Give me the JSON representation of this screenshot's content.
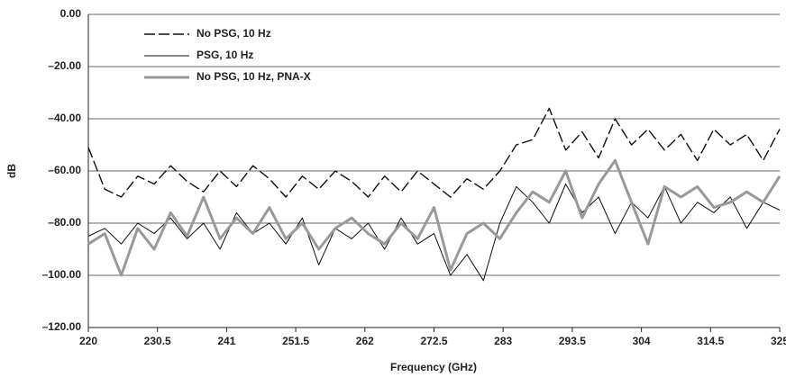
{
  "chart_data": {
    "type": "line",
    "xlabel": "Frequency (GHz)",
    "ylabel": "dB",
    "x": [
      220,
      222.5,
      225,
      227.5,
      230,
      232.5,
      235,
      237.5,
      240,
      242.5,
      245,
      247.5,
      250,
      252.5,
      255,
      257.5,
      260,
      262.5,
      265,
      267.5,
      270,
      272.5,
      275,
      277.5,
      280,
      282.5,
      285,
      287.5,
      290,
      292.5,
      295,
      297.5,
      300,
      302.5,
      305,
      307.5,
      310,
      312.5,
      315,
      317.5,
      320,
      322.5,
      325
    ],
    "series": [
      {
        "name": "No PSG, 10 Hz",
        "color": "#111111",
        "line_style": "dashed",
        "values": [
          -51,
          -67,
          -70,
          -62,
          -65,
          -58,
          -64,
          -68,
          -60,
          -66,
          -58,
          -63,
          -70,
          -62,
          -67,
          -60,
          -64,
          -70,
          -62,
          -68,
          -60,
          -65,
          -70,
          -63,
          -67,
          -60,
          -50,
          -48,
          -36,
          -52,
          -45,
          -55,
          -40,
          -50,
          -44,
          -52,
          -46,
          -56,
          -44,
          -50,
          -46,
          -56,
          -44
        ]
      },
      {
        "name": "PSG, 10 Hz",
        "color": "#111111",
        "line_style": "solid",
        "values": [
          -85,
          -82,
          -88,
          -80,
          -84,
          -78,
          -86,
          -80,
          -90,
          -76,
          -84,
          -80,
          -88,
          -78,
          -96,
          -82,
          -86,
          -80,
          -90,
          -78,
          -88,
          -84,
          -100,
          -92,
          -102,
          -80,
          -66,
          -72,
          -80,
          -65,
          -76,
          -70,
          -84,
          -72,
          -78,
          -66,
          -80,
          -72,
          -76,
          -70,
          -82,
          -72,
          -75
        ]
      },
      {
        "name": "No PSG, 10 Hz, PNA-X",
        "color": "#999999",
        "line_style": "solid",
        "values": [
          -88,
          -84,
          -100,
          -82,
          -90,
          -76,
          -85,
          -70,
          -86,
          -78,
          -84,
          -74,
          -86,
          -80,
          -90,
          -82,
          -78,
          -84,
          -88,
          -80,
          -86,
          -74,
          -98,
          -84,
          -80,
          -86,
          -76,
          -68,
          -72,
          -60,
          -78,
          -65,
          -56,
          -72,
          -88,
          -66,
          -70,
          -66,
          -74,
          -72,
          -68,
          -72,
          -62
        ]
      }
    ],
    "xlim": [
      220,
      325
    ],
    "xticks": [
      220,
      230.5,
      241,
      251.5,
      262,
      272.5,
      283,
      293.5,
      304,
      314.5,
      325
    ],
    "ylim": [
      -120,
      0
    ],
    "yticks": [
      {
        "value": 0,
        "label": "0.00"
      },
      {
        "value": -20,
        "label": "–20.00"
      },
      {
        "value": -40,
        "label": "–40.00"
      },
      {
        "value": -60,
        "label": "–60.00"
      },
      {
        "value": -80,
        "label": "–80.00"
      },
      {
        "value": -100,
        "label": "–100.00"
      },
      {
        "value": -120,
        "label": "–120.00"
      }
    ],
    "grid": true,
    "legend": "upper left"
  }
}
